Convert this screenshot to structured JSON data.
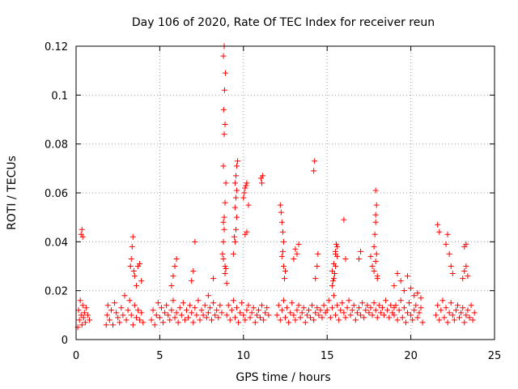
{
  "chart_data": {
    "type": "scatter",
    "title": "Day 106 of 2020, Rate Of TEC Index for receiver reun",
    "xlabel": "GPS time / hours",
    "ylabel": "ROTI / TECUs",
    "xlim": [
      0,
      25
    ],
    "ylim": [
      0,
      0.12
    ],
    "xticks": [
      0,
      5,
      10,
      15,
      20,
      25
    ],
    "yticks": [
      0,
      0.02,
      0.04,
      0.06,
      0.08,
      0.1,
      0.12
    ],
    "xtick_labels": [
      "0",
      "5",
      "10",
      "15",
      "20",
      "25"
    ],
    "ytick_labels": [
      "0",
      "0.02",
      "0.04",
      "0.06",
      "0.08",
      "0.1",
      "0.12"
    ],
    "grid": true,
    "marker": "+",
    "color": "#ff0000",
    "series": [
      {
        "x": [
          0.1,
          0.15,
          0.2,
          0.25,
          0.3,
          0.35,
          0.4,
          0.45,
          0.5,
          0.55,
          0.6,
          0.7,
          0.8,
          0.3,
          0.35,
          0.4,
          1.8,
          1.85,
          1.9,
          2.0,
          2.1,
          2.2,
          2.3,
          2.4,
          2.5,
          2.6,
          2.7,
          2.8,
          2.9,
          3.0,
          3.1,
          3.2,
          3.3,
          3.4,
          3.5,
          3.6,
          3.7,
          3.8,
          3.9,
          4.0,
          3.25,
          3.3,
          3.35,
          3.4,
          3.45,
          3.5,
          3.6,
          3.7,
          3.8,
          3.9,
          4.5,
          4.6,
          4.7,
          4.8,
          4.9,
          5.0,
          5.1,
          5.2,
          5.3,
          5.4,
          5.5,
          5.6,
          5.7,
          5.8,
          5.9,
          6.0,
          6.1,
          6.2,
          6.3,
          6.4,
          6.5,
          6.6,
          6.7,
          6.8,
          6.9,
          7.0,
          7.1,
          7.2,
          7.3,
          7.4,
          7.5,
          7.6,
          7.7,
          7.8,
          7.9,
          8.0,
          8.1,
          8.2,
          8.3,
          8.4,
          8.5,
          8.6,
          8.7,
          5.7,
          5.8,
          5.9,
          6.0,
          6.9,
          7.0,
          7.1,
          7.9,
          8.2,
          8.75,
          8.8,
          8.85,
          8.9,
          8.95,
          8.8,
          8.85,
          8.9,
          8.82,
          8.87,
          8.92,
          8.8,
          8.85,
          8.9,
          8.8,
          8.85,
          8.8,
          8.9,
          8.95,
          9.0,
          9.0,
          9.1,
          9.2,
          9.3,
          9.4,
          9.5,
          9.6,
          9.7,
          9.8,
          9.9,
          10.0,
          10.1,
          10.2,
          10.3,
          10.4,
          10.5,
          10.6,
          10.7,
          10.8,
          10.9,
          11.0,
          11.1,
          11.2,
          11.3,
          11.4,
          11.5,
          9.5,
          9.55,
          9.6,
          9.5,
          9.55,
          9.6,
          9.5,
          9.55,
          9.6,
          9.65,
          10.0,
          10.1,
          10.2,
          10.05,
          10.15,
          10.3,
          11.05,
          11.1,
          11.15,
          10.1,
          10.2,
          9.4,
          9.45,
          12.0,
          12.1,
          12.2,
          12.3,
          12.4,
          12.5,
          12.6,
          12.7,
          12.8,
          12.9,
          13.0,
          13.1,
          13.2,
          13.3,
          13.4,
          13.5,
          13.6,
          13.7,
          13.8,
          13.9,
          14.0,
          14.1,
          14.2,
          14.3,
          14.4,
          14.5,
          14.6,
          14.7,
          14.8,
          14.9,
          12.2,
          12.25,
          12.3,
          12.35,
          12.4,
          12.3,
          12.35,
          12.4,
          12.45,
          12.5,
          13.0,
          13.1,
          13.2,
          13.3,
          14.2,
          14.25,
          14.3,
          14.4,
          14.45,
          15.0,
          15.1,
          15.2,
          15.3,
          15.4,
          15.5,
          15.6,
          15.7,
          15.8,
          15.9,
          16.0,
          16.1,
          16.2,
          16.3,
          16.4,
          16.5,
          16.6,
          16.7,
          16.8,
          16.9,
          17.0,
          17.1,
          17.2,
          17.3,
          17.4,
          17.5,
          17.6,
          17.7,
          17.8,
          17.9,
          18.0,
          18.1,
          18.2,
          18.3,
          18.4,
          18.5,
          18.6,
          18.7,
          18.8,
          18.9,
          19.0,
          15.3,
          15.4,
          15.5,
          15.6,
          15.5,
          15.55,
          15.6,
          15.4,
          15.45,
          15.5,
          15.3,
          15.35,
          16.0,
          16.1,
          16.9,
          17.0,
          17.6,
          17.7,
          17.8,
          17.9,
          18.0,
          17.8,
          17.85,
          17.9,
          17.9,
          17.95,
          17.9,
          17.95,
          18.0,
          19.0,
          19.1,
          19.2,
          19.3,
          19.4,
          19.5,
          19.6,
          19.7,
          19.8,
          19.9,
          20.0,
          20.1,
          20.2,
          20.3,
          20.4,
          20.5,
          20.6,
          20.7,
          19.0,
          19.2,
          19.4,
          19.6,
          19.8,
          20.0,
          20.2,
          20.4,
          20.6,
          21.5,
          21.6,
          21.7,
          21.8,
          21.9,
          22.0,
          22.1,
          22.2,
          22.3,
          22.4,
          22.5,
          22.6,
          22.7,
          22.8,
          22.9,
          23.0,
          23.1,
          23.2,
          23.3,
          23.4,
          23.5,
          23.6,
          23.7,
          23.8,
          21.6,
          21.7,
          22.1,
          22.2,
          22.3,
          22.4,
          22.5,
          23.1,
          23.2,
          23.3,
          23.4,
          23.2,
          23.3
        ],
        "y": [
          0.005,
          0.012,
          0.008,
          0.016,
          0.01,
          0.006,
          0.014,
          0.009,
          0.011,
          0.007,
          0.013,
          0.01,
          0.008,
          0.043,
          0.045,
          0.042,
          0.006,
          0.01,
          0.014,
          0.008,
          0.012,
          0.006,
          0.015,
          0.011,
          0.009,
          0.007,
          0.013,
          0.01,
          0.018,
          0.008,
          0.012,
          0.016,
          0.01,
          0.006,
          0.014,
          0.009,
          0.012,
          0.008,
          0.011,
          0.007,
          0.03,
          0.033,
          0.038,
          0.042,
          0.028,
          0.026,
          0.022,
          0.03,
          0.031,
          0.024,
          0.008,
          0.012,
          0.006,
          0.01,
          0.015,
          0.009,
          0.013,
          0.007,
          0.011,
          0.014,
          0.01,
          0.008,
          0.012,
          0.016,
          0.009,
          0.011,
          0.007,
          0.013,
          0.01,
          0.015,
          0.008,
          0.012,
          0.009,
          0.014,
          0.011,
          0.007,
          0.013,
          0.01,
          0.016,
          0.008,
          0.012,
          0.01,
          0.014,
          0.009,
          0.011,
          0.013,
          0.008,
          0.015,
          0.01,
          0.012,
          0.009,
          0.014,
          0.011,
          0.022,
          0.026,
          0.03,
          0.033,
          0.024,
          0.028,
          0.04,
          0.018,
          0.025,
          0.035,
          0.04,
          0.05,
          0.056,
          0.064,
          0.071,
          0.084,
          0.088,
          0.094,
          0.102,
          0.109,
          0.116,
          0.12,
          0.03,
          0.033,
          0.045,
          0.048,
          0.027,
          0.029,
          0.023,
          0.01,
          0.014,
          0.008,
          0.012,
          0.016,
          0.009,
          0.013,
          0.007,
          0.011,
          0.015,
          0.01,
          0.008,
          0.012,
          0.014,
          0.009,
          0.011,
          0.013,
          0.007,
          0.01,
          0.012,
          0.009,
          0.014,
          0.008,
          0.011,
          0.013,
          0.01,
          0.04,
          0.045,
          0.05,
          0.054,
          0.058,
          0.061,
          0.064,
          0.067,
          0.071,
          0.073,
          0.058,
          0.062,
          0.064,
          0.06,
          0.063,
          0.055,
          0.066,
          0.064,
          0.067,
          0.043,
          0.044,
          0.035,
          0.042,
          0.01,
          0.014,
          0.008,
          0.012,
          0.016,
          0.009,
          0.013,
          0.007,
          0.011,
          0.015,
          0.01,
          0.008,
          0.012,
          0.014,
          0.009,
          0.011,
          0.013,
          0.007,
          0.01,
          0.012,
          0.009,
          0.014,
          0.008,
          0.011,
          0.013,
          0.01,
          0.012,
          0.009,
          0.014,
          0.011,
          0.055,
          0.052,
          0.048,
          0.044,
          0.04,
          0.034,
          0.036,
          0.03,
          0.025,
          0.028,
          0.033,
          0.037,
          0.035,
          0.039,
          0.069,
          0.073,
          0.025,
          0.03,
          0.035,
          0.012,
          0.016,
          0.009,
          0.013,
          0.018,
          0.01,
          0.014,
          0.008,
          0.012,
          0.015,
          0.011,
          0.009,
          0.013,
          0.016,
          0.01,
          0.012,
          0.014,
          0.008,
          0.011,
          0.013,
          0.01,
          0.015,
          0.009,
          0.012,
          0.014,
          0.011,
          0.013,
          0.01,
          0.015,
          0.012,
          0.009,
          0.014,
          0.011,
          0.013,
          0.01,
          0.016,
          0.012,
          0.009,
          0.014,
          0.011,
          0.013,
          0.028,
          0.031,
          0.035,
          0.038,
          0.036,
          0.039,
          0.034,
          0.025,
          0.027,
          0.03,
          0.022,
          0.024,
          0.049,
          0.033,
          0.033,
          0.036,
          0.034,
          0.03,
          0.028,
          0.032,
          0.026,
          0.038,
          0.043,
          0.048,
          0.051,
          0.055,
          0.061,
          0.035,
          0.025,
          0.01,
          0.014,
          0.008,
          0.012,
          0.016,
          0.009,
          0.013,
          0.007,
          0.011,
          0.015,
          0.01,
          0.008,
          0.012,
          0.014,
          0.009,
          0.011,
          0.013,
          0.007,
          0.022,
          0.027,
          0.024,
          0.02,
          0.026,
          0.021,
          0.018,
          0.019,
          0.017,
          0.01,
          0.014,
          0.008,
          0.012,
          0.016,
          0.009,
          0.013,
          0.007,
          0.011,
          0.015,
          0.01,
          0.008,
          0.012,
          0.014,
          0.009,
          0.011,
          0.013,
          0.007,
          0.01,
          0.012,
          0.009,
          0.014,
          0.008,
          0.011,
          0.047,
          0.044,
          0.039,
          0.043,
          0.035,
          0.03,
          0.027,
          0.025,
          0.028,
          0.03,
          0.026,
          0.038,
          0.039
        ]
      }
    ]
  }
}
